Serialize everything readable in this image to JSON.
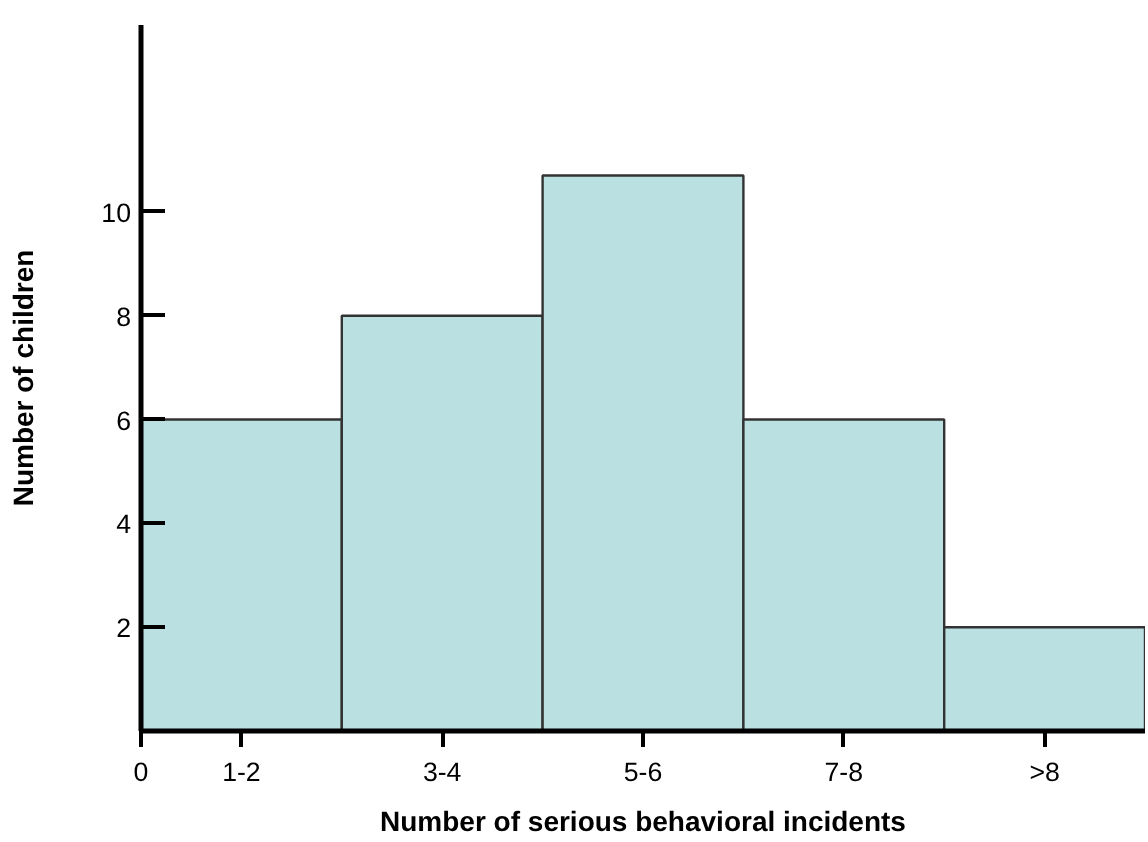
{
  "chart_data": {
    "type": "bar",
    "xlabel": "Number of serious behavioral incidents",
    "ylabel": "Number of children",
    "categories": [
      "1-2",
      "3-4",
      "5-6",
      "7-8",
      ">8"
    ],
    "values": [
      6,
      8,
      10.7,
      6,
      2
    ],
    "color": "#bae0e2",
    "ylim": [
      0,
      13.6
    ],
    "yticks": [
      2,
      4,
      6,
      8,
      10
    ],
    "grid": false,
    "annotations": [
      "0"
    ]
  }
}
